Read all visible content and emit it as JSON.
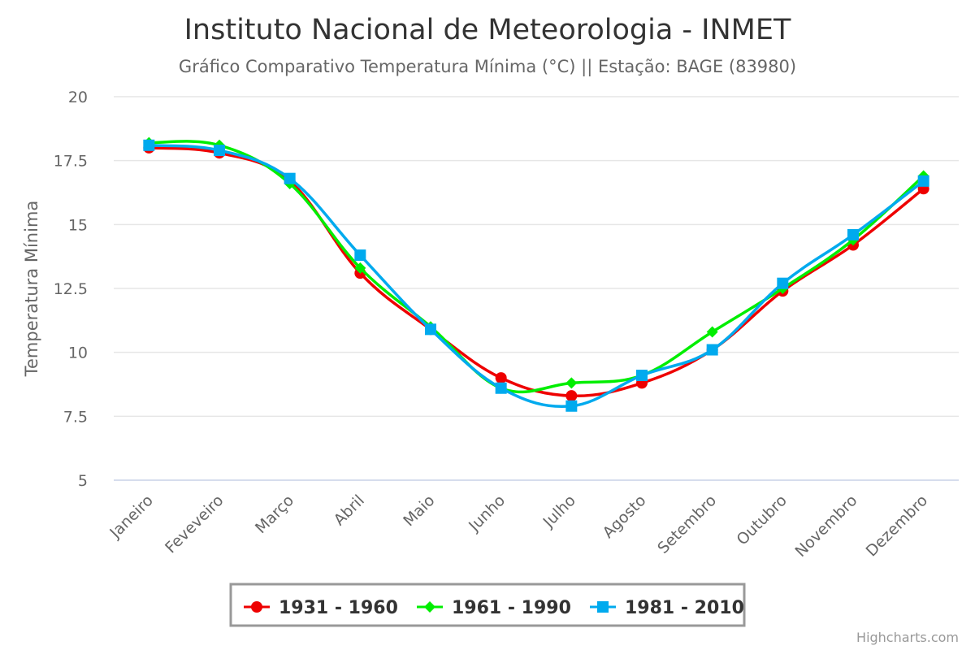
{
  "chart_data": {
    "type": "line",
    "title": "Instituto Nacional de Meteorologia - INMET",
    "subtitle": "Gráfico Comparativo Temperatura Mínima (°C) || Estação: BAGE (83980)",
    "xlabel": "",
    "ylabel": "Temperatura Mínima",
    "ylim": [
      5,
      20
    ],
    "yticks": [
      "5",
      "7.5",
      "10",
      "12.5",
      "15",
      "17.5",
      "20"
    ],
    "ytick_values": [
      5,
      7.5,
      10,
      12.5,
      15,
      17.5,
      20
    ],
    "categories": [
      "Janeiro",
      "Feveveiro",
      "Março",
      "Abril",
      "Maio",
      "Junho",
      "Julho",
      "Agosto",
      "Setembro",
      "Outubro",
      "Novembro",
      "Dezembro"
    ],
    "grid": true,
    "legend_position": "bottom-center",
    "series": [
      {
        "name": "1931 - 1960",
        "color": "#ee0000",
        "marker": "circle",
        "values": [
          18.0,
          17.8,
          16.7,
          13.1,
          10.9,
          9.0,
          8.3,
          8.8,
          10.1,
          12.4,
          14.2,
          16.4
        ]
      },
      {
        "name": "1961 - 1990",
        "color": "#00ee00",
        "marker": "diamond",
        "values": [
          18.2,
          18.1,
          16.6,
          13.3,
          11.0,
          8.6,
          8.8,
          9.1,
          10.8,
          12.5,
          14.4,
          16.9
        ]
      },
      {
        "name": "1981 - 2010",
        "color": "#00aaee",
        "marker": "square",
        "values": [
          18.1,
          17.9,
          16.8,
          13.8,
          10.9,
          8.6,
          7.9,
          9.1,
          10.1,
          12.7,
          14.6,
          16.7
        ]
      }
    ],
    "credits": "Highcharts.com"
  }
}
